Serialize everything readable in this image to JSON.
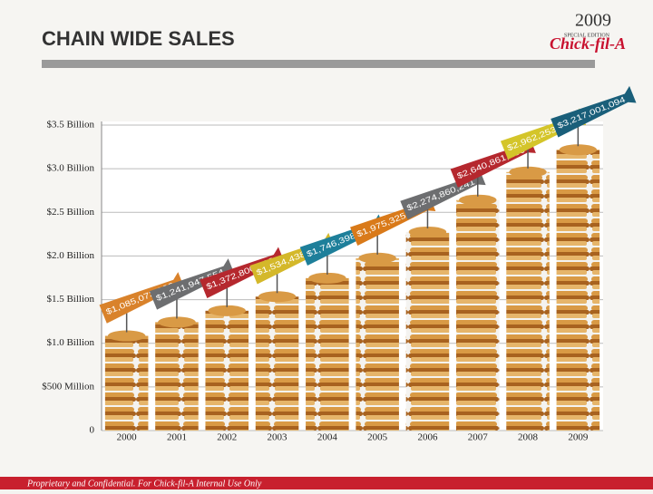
{
  "header": {
    "title": "CHAIN WIDE SALES",
    "logo_year": "2009",
    "logo_edition": "SPECIAL EDITION",
    "logo_brand": "Chick-fil-A"
  },
  "footer": {
    "text": "Proprietary and Confidential. For Chick-fil-A Internal Use Only"
  },
  "chart_data": {
    "type": "bar",
    "categories": [
      "2000",
      "2001",
      "2002",
      "2003",
      "2004",
      "2005",
      "2006",
      "2007",
      "2008",
      "2009"
    ],
    "values": [
      1085073966,
      1241947554,
      1372800518,
      1534438597,
      1746398916,
      1975325500,
      2274860241,
      2640861130,
      2962253676,
      3217001094
    ],
    "value_labels": [
      "$1,085,073,966",
      "$1,241,947,554",
      "$1,372,800,518",
      "$1,534,438,597",
      "$1,746,398,916",
      "$1,975,325,500",
      "$2,274,860,241",
      "$2,640,861,130",
      "$2,962,253,676",
      "$3,217,001,094"
    ],
    "colors": [
      "#d9822b",
      "#6d6e70",
      "#b5282e",
      "#d4b82a",
      "#1e7f9a",
      "#d97a1a",
      "#6d6e70",
      "#b5282e",
      "#d4c52a",
      "#1a5f7a"
    ],
    "ylim": [
      0,
      3500000000
    ],
    "yticks": [
      0,
      {
        "value": 500000000,
        "label": "$500 Million"
      },
      {
        "value": 1000000000,
        "label": "$1.0 Billion"
      },
      {
        "value": 1500000000,
        "label": "$1.5 Billion"
      },
      {
        "value": 2000000000,
        "label": "$2.0 Billion"
      },
      {
        "value": 2500000000,
        "label": "$2.5 Billion"
      },
      {
        "value": 3000000000,
        "label": "$3.0 Billion"
      },
      {
        "value": 3500000000,
        "label": "$3.5 Billion"
      }
    ],
    "grid": true
  }
}
